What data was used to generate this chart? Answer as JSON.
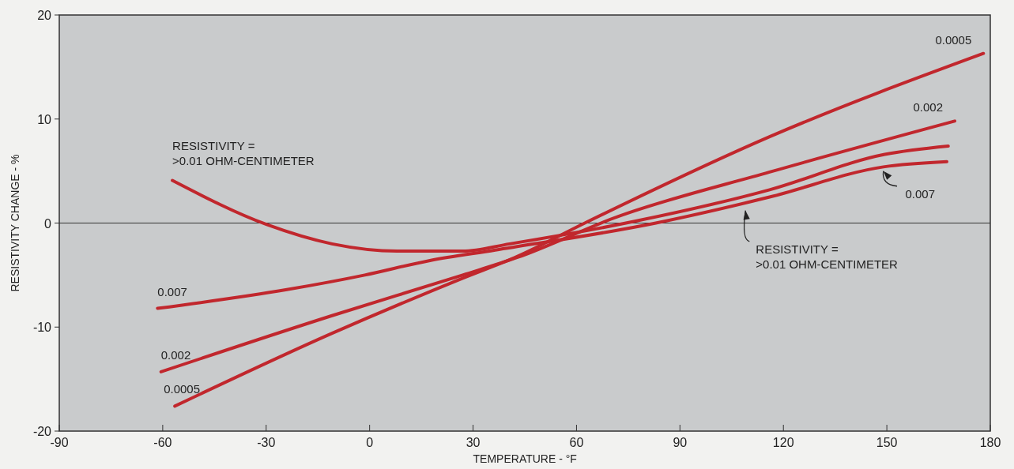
{
  "chart_data": {
    "type": "line",
    "xlabel": "TEMPERATURE - °F",
    "ylabel": "RESISTIVITY CHANGE - %",
    "xlim": [
      -90,
      180
    ],
    "xticks": [
      -90,
      -60,
      -30,
      0,
      30,
      60,
      90,
      120,
      150,
      180
    ],
    "ylim": [
      -20,
      20
    ],
    "yticks": [
      -20,
      -10,
      0,
      10,
      20
    ],
    "grid": false,
    "marker": "none",
    "line_style": "solid",
    "ref_lines": [
      {
        "axis": "y",
        "value": 0,
        "color": "#333333"
      }
    ],
    "series": [
      {
        "name": "0.0005",
        "color": "#c1272d",
        "x": [
          -56.5,
          -10.9,
          27,
          42.9,
          62.4,
          116,
          178
        ],
        "values": [
          -17.6,
          -10.6,
          -5.3,
          -3.2,
          0,
          8.3,
          16.3
        ]
      },
      {
        "name": "0.002",
        "color": "#c1272d",
        "x": [
          -60.5,
          -10.9,
          27,
          42.9,
          71.8,
          116,
          169.7
        ],
        "values": [
          -14.3,
          -8.9,
          -5.0,
          -3.3,
          0.6,
          4.9,
          9.8
        ]
      },
      {
        "name": "0.007",
        "color": "#c1272d",
        "x": [
          -61.5,
          -24,
          -1.4,
          17.5,
          36.4,
          83,
          116,
          149,
          167.4
        ],
        "values": [
          -8.2,
          -6.4,
          -5.0,
          -3.6,
          -2.6,
          0,
          2.5,
          5.4,
          5.9
        ]
      },
      {
        "name": "RESISTIVITY =\n>0.01 OHM-CENTIMETER",
        "color": "#c1272d",
        "x": [
          -57.2,
          -29.8,
          -10.9,
          8,
          27,
          40.6,
          76.6,
          116,
          149.4,
          167.8
        ],
        "values": [
          4.1,
          -0.15,
          -2.0,
          -2.7,
          -2.7,
          -2.0,
          0.15,
          3.2,
          6.6,
          7.4
        ]
      }
    ]
  }
}
